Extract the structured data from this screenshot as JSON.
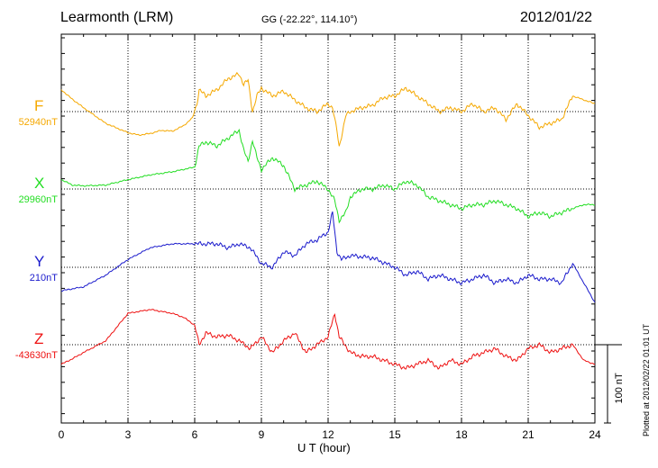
{
  "header": {
    "station": "Learmonth (LRM)",
    "coordinates": "GG (-22.22°, 114.10°)",
    "date": "2012/01/22"
  },
  "footer": {
    "plotted": "Plotted at 2012/02/22 01:01 UT"
  },
  "chart_data": {
    "type": "line",
    "xlabel": "U T (hour)",
    "xlim": [
      0,
      24
    ],
    "x_ticks": [
      "0",
      "3",
      "6",
      "9",
      "12",
      "15",
      "18",
      "21",
      "24"
    ],
    "scale_bar_label": "100 nT",
    "scale_bar_nT": 100,
    "grid": true,
    "series": [
      {
        "name": "F",
        "baseline": "52940nT",
        "color": "#f5a800",
        "x": [
          0,
          0.4,
          1,
          2,
          3,
          3.5,
          4,
          4.5,
          5,
          5.5,
          5.9,
          6.1,
          6.2,
          6.5,
          7,
          7.5,
          8,
          8.2,
          8.4,
          8.6,
          8.8,
          9,
          9.5,
          10,
          10.5,
          11,
          11.5,
          12,
          12.2,
          12.4,
          12.5,
          12.8,
          13,
          13.5,
          14,
          14.5,
          15,
          15.5,
          16,
          16.5,
          17,
          17.5,
          18,
          18.5,
          19,
          19.5,
          20,
          20.5,
          21,
          21.5,
          22,
          22.5,
          23,
          23.5,
          24
        ],
        "values": [
          28,
          18,
          5,
          -15,
          -27,
          -30,
          -28,
          -24,
          -25,
          -18,
          -8,
          10,
          28,
          20,
          28,
          42,
          48,
          35,
          40,
          0,
          20,
          30,
          20,
          26,
          15,
          5,
          0,
          10,
          5,
          -25,
          -45,
          -5,
          0,
          5,
          8,
          18,
          20,
          30,
          20,
          10,
          0,
          5,
          0,
          10,
          0,
          5,
          -10,
          10,
          -5,
          -20,
          -15,
          -10,
          20,
          15,
          10
        ]
      },
      {
        "name": "X",
        "baseline": "29960nT",
        "color": "#22dd22",
        "x": [
          0,
          0.5,
          1,
          2,
          3,
          4,
          5,
          5.5,
          6,
          6.2,
          6.5,
          7,
          7.5,
          8,
          8.2,
          8.4,
          8.6,
          8.8,
          9,
          9.5,
          10,
          10.5,
          11,
          11.5,
          12,
          12.3,
          12.5,
          12.8,
          13,
          13.5,
          14,
          14.5,
          15,
          15.5,
          16,
          16.5,
          17,
          17.5,
          18,
          18.5,
          19,
          19.5,
          20,
          20.5,
          21,
          21.5,
          22,
          22.5,
          23,
          23.5,
          24
        ],
        "values": [
          12,
          5,
          4,
          5,
          12,
          18,
          22,
          25,
          28,
          55,
          60,
          55,
          65,
          75,
          50,
          35,
          62,
          40,
          25,
          40,
          30,
          0,
          5,
          10,
          0,
          -15,
          -40,
          -30,
          -10,
          0,
          0,
          5,
          0,
          10,
          5,
          -10,
          -15,
          -20,
          -25,
          -20,
          -20,
          -15,
          -20,
          -25,
          -35,
          -30,
          -35,
          -30,
          -25,
          -20,
          -20
        ]
      },
      {
        "name": "Y",
        "baseline": "210nT",
        "color": "#1a1acc",
        "x": [
          0,
          1,
          2,
          3,
          4,
          5,
          6,
          7,
          7.5,
          8,
          8.5,
          9,
          9.5,
          10,
          10.5,
          11,
          11.5,
          12,
          12.2,
          12.4,
          12.6,
          13,
          14,
          15,
          15.5,
          16,
          16.5,
          17,
          17.5,
          18,
          18.5,
          19,
          19.5,
          20,
          20.5,
          21,
          21.5,
          22,
          22.5,
          23,
          23.5,
          24
        ],
        "values": [
          -30,
          -25,
          -10,
          10,
          25,
          30,
          30,
          30,
          25,
          30,
          25,
          5,
          0,
          20,
          15,
          30,
          35,
          45,
          70,
          20,
          10,
          15,
          12,
          0,
          -10,
          -5,
          -15,
          -10,
          -15,
          -20,
          -15,
          -10,
          -20,
          -15,
          -20,
          -10,
          -15,
          -15,
          -20,
          5,
          -20,
          -45
        ]
      },
      {
        "name": "Z",
        "baseline": "-43630nT",
        "color": "#ee1111",
        "x": [
          0,
          0.5,
          1,
          2,
          3,
          4,
          5,
          5.5,
          6,
          6.2,
          6.5,
          7,
          7.5,
          8,
          8.5,
          9,
          9.5,
          10,
          10.5,
          11,
          11.5,
          12,
          12.3,
          12.5,
          13,
          13.5,
          14,
          14.5,
          15,
          15.5,
          16,
          16.5,
          17,
          17.5,
          18,
          18.5,
          19,
          19.5,
          20,
          20.5,
          21,
          21.5,
          22,
          22.5,
          23,
          23.5,
          24
        ],
        "values": [
          -25,
          -18,
          -10,
          5,
          40,
          45,
          40,
          35,
          25,
          0,
          15,
          10,
          12,
          5,
          -5,
          10,
          -10,
          5,
          15,
          -10,
          0,
          10,
          40,
          10,
          -10,
          -15,
          -15,
          -20,
          -25,
          -30,
          -25,
          -20,
          -30,
          -20,
          -25,
          -15,
          -10,
          -5,
          -15,
          -20,
          -5,
          0,
          -10,
          -5,
          0,
          -20,
          -25
        ]
      }
    ]
  }
}
